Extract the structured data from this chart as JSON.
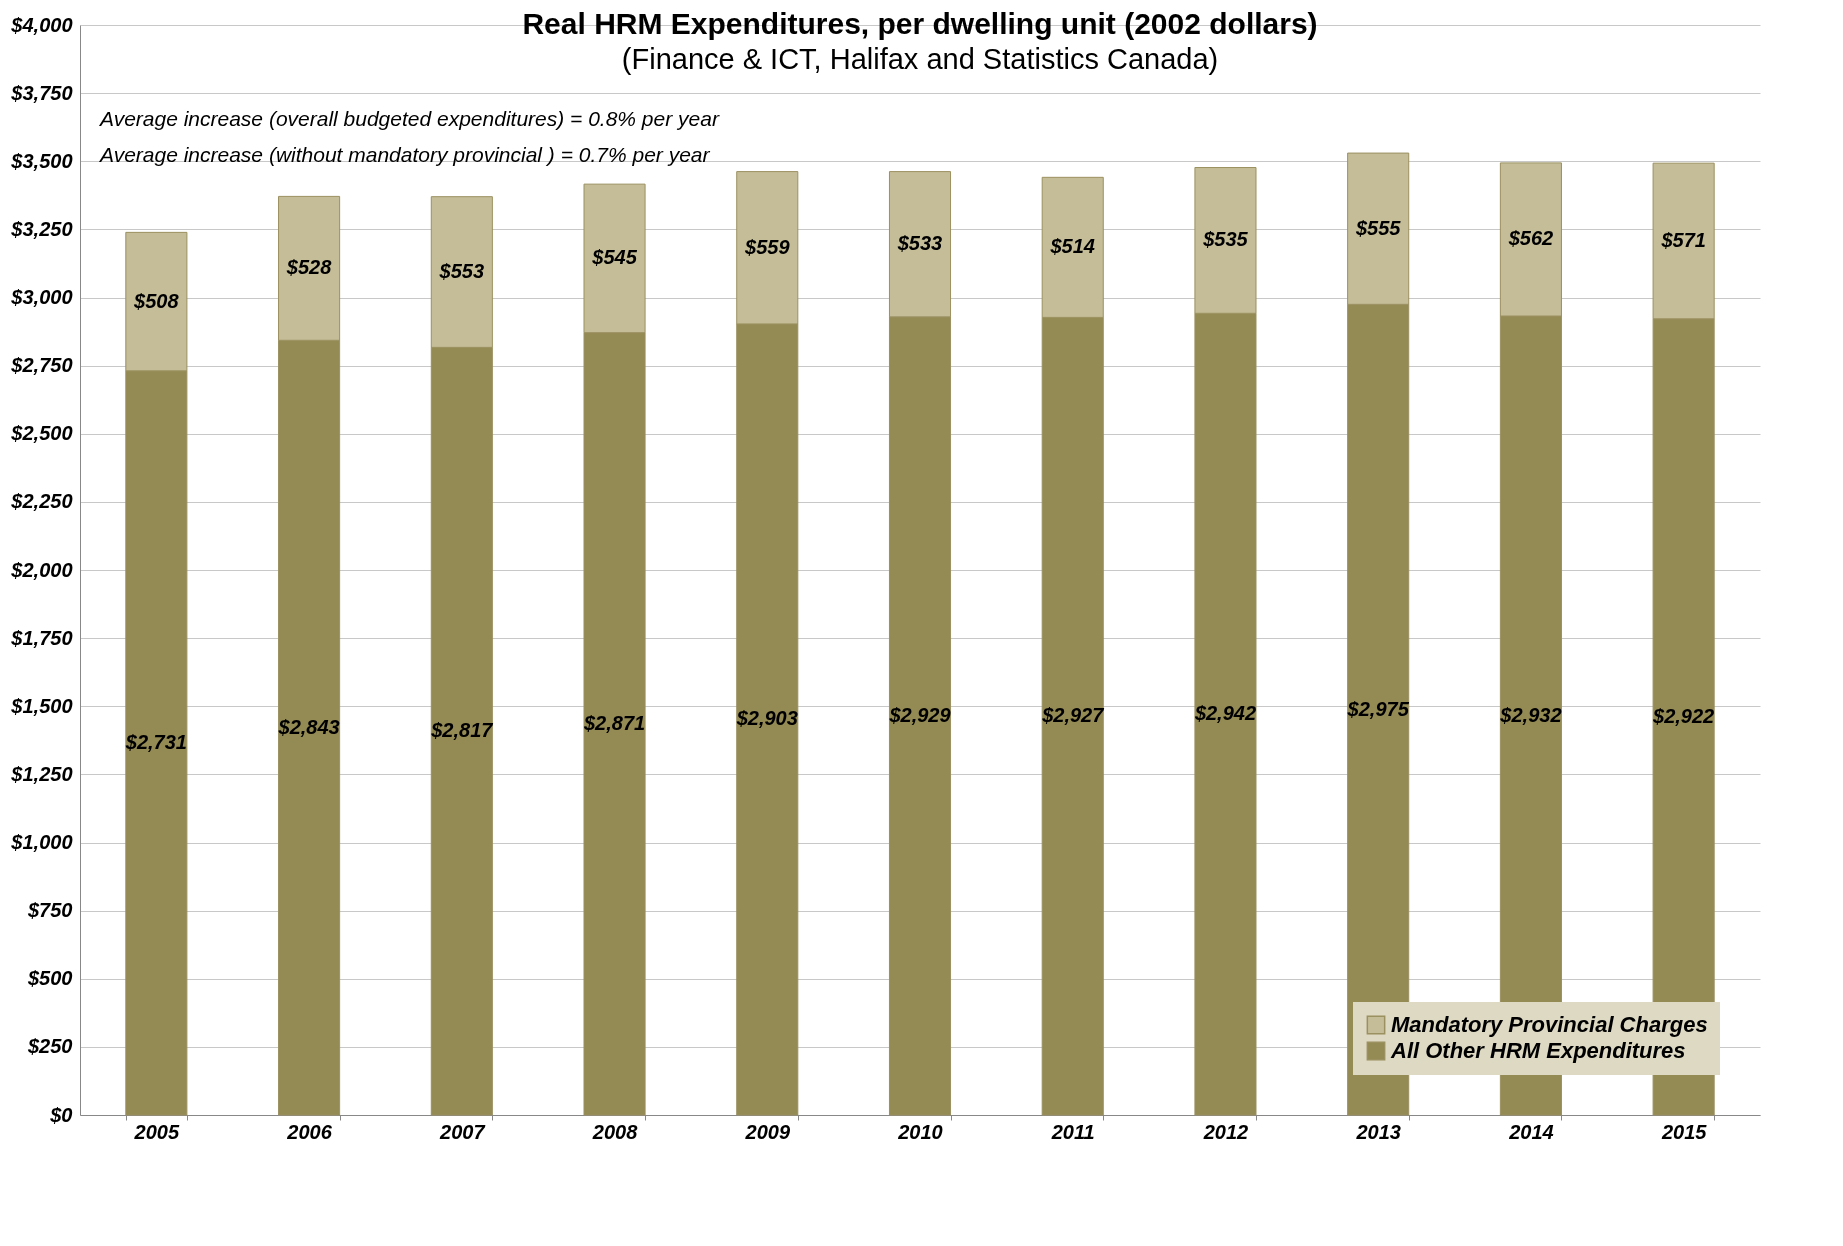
{
  "chart_data": {
    "type": "bar",
    "title": "Real HRM Expenditures, per dwelling unit (2002 dollars)",
    "subtitle": "(Finance & ICT, Halifax and Statistics Canada)",
    "annotations": [
      "Average increase (overall budgeted expenditures) = 0.8% per year",
      "Average increase (without mandatory provincial ) = 0.7% per year"
    ],
    "categories": [
      "2005",
      "2006",
      "2007",
      "2008",
      "2009",
      "2010",
      "2011",
      "2012",
      "2013",
      "2014",
      "2015"
    ],
    "stacked": true,
    "series": [
      {
        "name": "All Other HRM Expenditures",
        "color": "#948a54",
        "values": [
          2731,
          2843,
          2817,
          2871,
          2903,
          2929,
          2927,
          2942,
          2975,
          2932,
          2922
        ],
        "value_labels": [
          "$2,731",
          "$2,843",
          "$2,817",
          "$2,871",
          "$2,903",
          "$2,929",
          "$2,927",
          "$2,942",
          "$2,975",
          "$2,932",
          "$2,922"
        ]
      },
      {
        "name": "Mandatory Provincial Charges",
        "color": "#c4bd97",
        "values": [
          508,
          528,
          553,
          545,
          559,
          533,
          514,
          535,
          555,
          562,
          571
        ],
        "value_labels": [
          "$508",
          "$528",
          "$553",
          "$545",
          "$559",
          "$533",
          "$514",
          "$535",
          "$555",
          "$562",
          "$571"
        ]
      }
    ],
    "ylim": [
      0,
      4000
    ],
    "yticks": [
      {
        "value": 0,
        "label": "$0"
      },
      {
        "value": 250,
        "label": "$250"
      },
      {
        "value": 500,
        "label": "$500"
      },
      {
        "value": 750,
        "label": "$750"
      },
      {
        "value": 1000,
        "label": "$1,000"
      },
      {
        "value": 1250,
        "label": "$1,250"
      },
      {
        "value": 1500,
        "label": "$1,500"
      },
      {
        "value": 1750,
        "label": "$1,750"
      },
      {
        "value": 2000,
        "label": "$2,000"
      },
      {
        "value": 2250,
        "label": "$2,250"
      },
      {
        "value": 2500,
        "label": "$2,500"
      },
      {
        "value": 2750,
        "label": "$2,750"
      },
      {
        "value": 3000,
        "label": "$3,000"
      },
      {
        "value": 3250,
        "label": "$3,250"
      },
      {
        "value": 3500,
        "label": "$3,500"
      },
      {
        "value": 3750,
        "label": "$3,750"
      },
      {
        "value": 4000,
        "label": "$4,000"
      }
    ],
    "grid": "y",
    "legend": "bottom right"
  }
}
